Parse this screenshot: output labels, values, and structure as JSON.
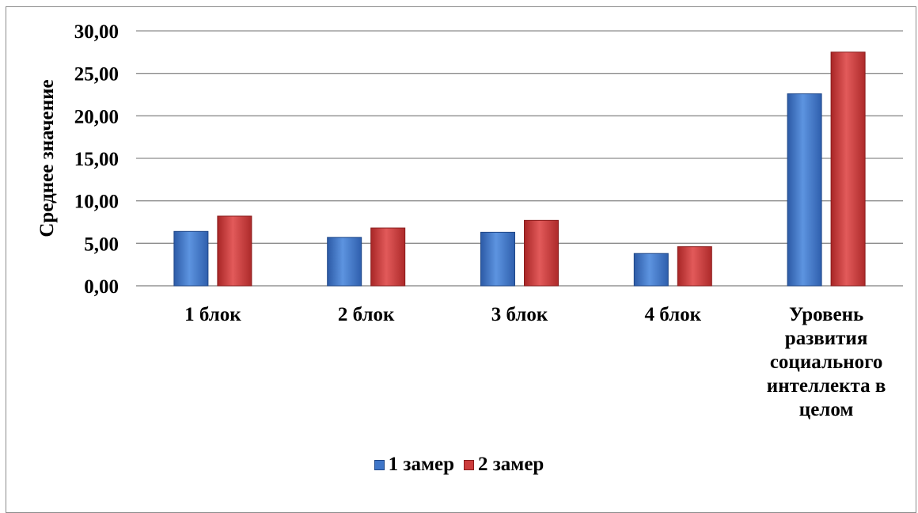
{
  "chart_data": {
    "type": "bar",
    "ylabel": "Среднее значение",
    "xlabel": "",
    "ylim": [
      0,
      30
    ],
    "ytick_step": 5,
    "ytick_labels": [
      "0,00",
      "5,00",
      "10,00",
      "15,00",
      "20,00",
      "25,00",
      "30,00"
    ],
    "grid": true,
    "legend_position": "bottom",
    "categories": [
      "1 блок",
      "2 блок",
      "3 блок",
      "4 блок",
      "Уровень развития социального интеллекта в целом"
    ],
    "series": [
      {
        "name": "1 замер",
        "color": "#3f76c9",
        "values": [
          6.4,
          5.7,
          6.3,
          3.8,
          22.6
        ]
      },
      {
        "name": "2 замер",
        "color": "#cc3b3b",
        "values": [
          8.2,
          6.8,
          7.7,
          4.6,
          27.5
        ]
      }
    ]
  }
}
